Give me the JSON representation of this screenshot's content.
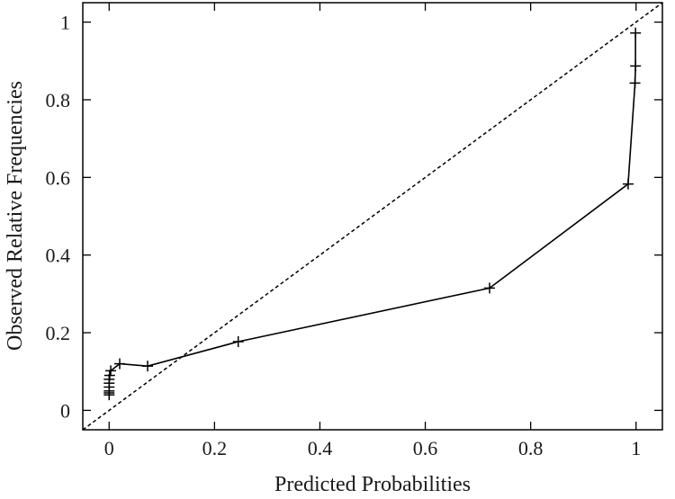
{
  "chart_data": {
    "type": "line",
    "title": "",
    "xlabel": "Predicted Probabilities",
    "ylabel": "Observed Relative Frequencies",
    "xlim": [
      -0.05,
      1.05
    ],
    "ylim": [
      -0.05,
      1.05
    ],
    "xticks": [
      0,
      0.2,
      0.4,
      0.6,
      0.8,
      1
    ],
    "xtick_labels": [
      "0",
      "0.2",
      "0.4",
      "0.6",
      "0.8",
      "1"
    ],
    "yticks": [
      0,
      0.2,
      0.4,
      0.6,
      0.8,
      1
    ],
    "ytick_labels": [
      "0",
      "0.2",
      "0.4",
      "0.6",
      "0.8",
      "1"
    ],
    "grid": false,
    "legend": "none",
    "series": [
      {
        "style": "solid-with-plus-markers",
        "color": "#000000",
        "x": [
          0.0,
          0.0,
          0.0,
          0.0,
          0.0,
          0.0,
          0.001,
          0.003,
          0.02,
          0.073,
          0.245,
          0.722,
          0.985,
          0.998,
          0.999,
          0.999
        ],
        "y": [
          0.04,
          0.045,
          0.05,
          0.06,
          0.07,
          0.08,
          0.09,
          0.102,
          0.12,
          0.114,
          0.177,
          0.315,
          0.583,
          0.843,
          0.887,
          0.972
        ]
      },
      {
        "style": "dashed-diagonal",
        "color": "#000000",
        "x": [
          -0.05,
          1.05
        ],
        "y": [
          -0.05,
          1.05
        ]
      }
    ]
  }
}
